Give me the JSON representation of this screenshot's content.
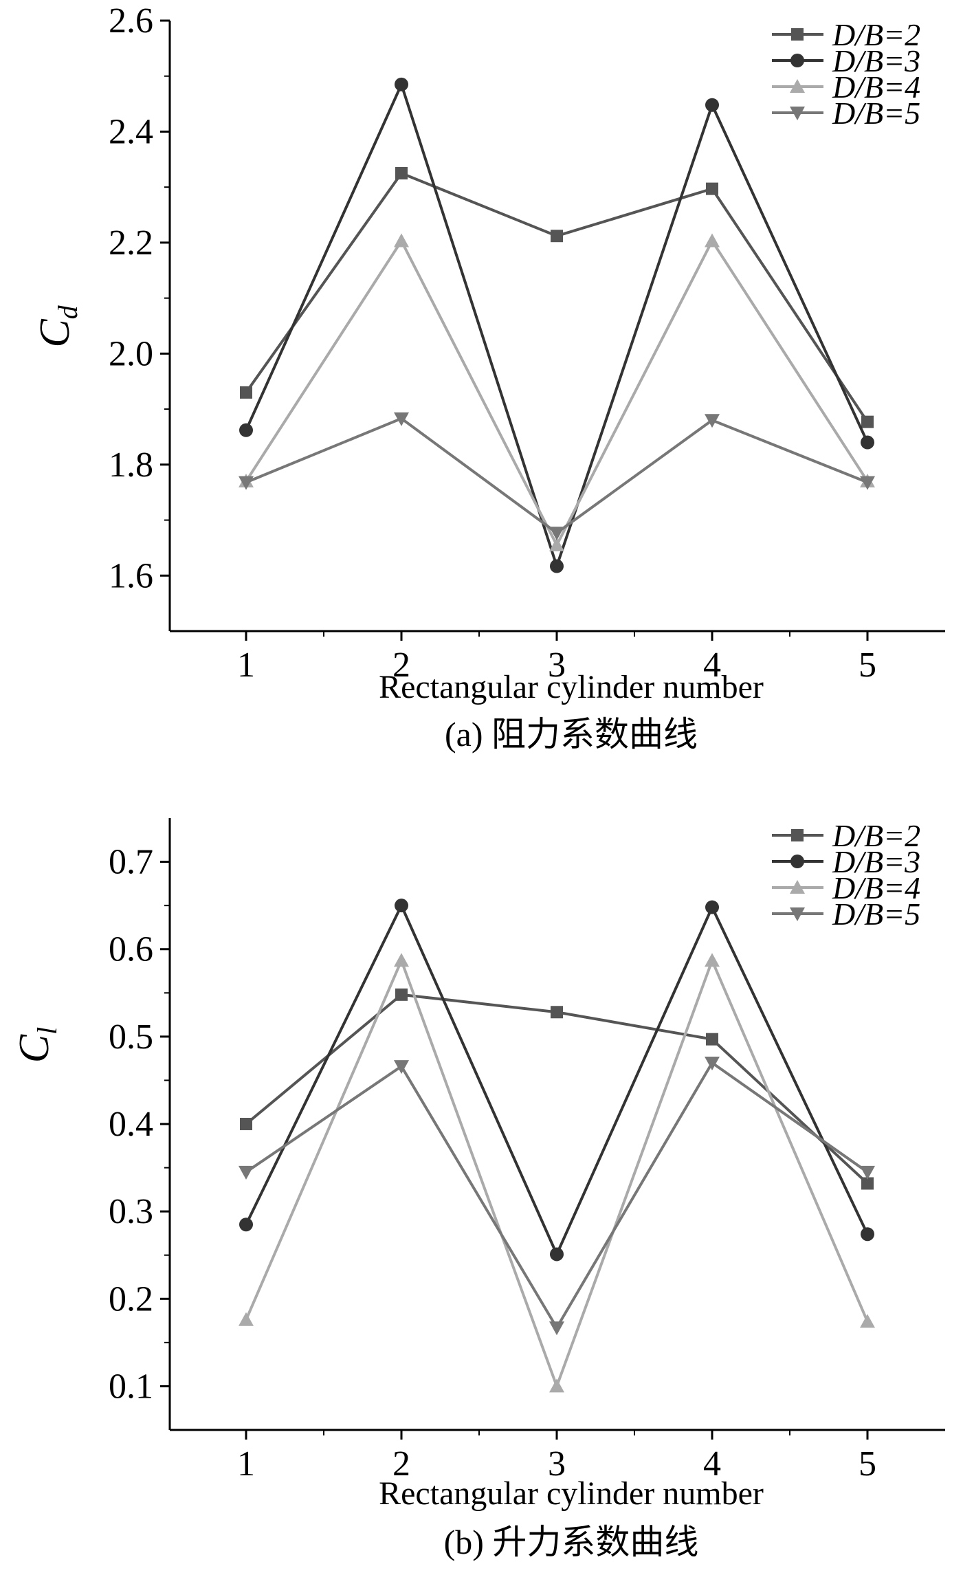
{
  "chart_data": [
    {
      "type": "line",
      "categories": [
        "1",
        "2",
        "3",
        "4",
        "5"
      ],
      "x": [
        1,
        2,
        3,
        4,
        5
      ],
      "xlabel": "Rectangular cylinder number",
      "ylabel": "C",
      "ylabel_sub": "d",
      "caption": "(a) 阻力系数曲线",
      "ylim": [
        1.5,
        2.6
      ],
      "yticks": [
        "1.6",
        "1.8",
        "2.0",
        "2.2",
        "2.4",
        "2.6"
      ],
      "ytick_values": [
        1.6,
        1.8,
        2.0,
        2.2,
        2.4,
        2.6
      ],
      "legend_position": "top-right",
      "series": [
        {
          "name": "D/B=2",
          "marker": "square",
          "color": "#555555",
          "values": [
            1.93,
            2.325,
            2.212,
            2.297,
            1.877
          ]
        },
        {
          "name": "D/B=3",
          "marker": "circle",
          "color": "#333333",
          "values": [
            1.862,
            2.485,
            1.617,
            2.448,
            1.84
          ]
        },
        {
          "name": "D/B=4",
          "marker": "triangle-up",
          "color": "#aaaaaa",
          "values": [
            1.77,
            2.203,
            1.655,
            2.203,
            1.77
          ]
        },
        {
          "name": "D/B=5",
          "marker": "triangle-down",
          "color": "#777777",
          "values": [
            1.768,
            1.883,
            1.677,
            1.88,
            1.768
          ]
        }
      ]
    },
    {
      "type": "line",
      "categories": [
        "1",
        "2",
        "3",
        "4",
        "5"
      ],
      "x": [
        1,
        2,
        3,
        4,
        5
      ],
      "xlabel": "Rectangular cylinder number",
      "ylabel": "C",
      "ylabel_sub": "l",
      "caption": "(b) 升力系数曲线",
      "ylim": [
        0.05,
        0.75
      ],
      "yticks": [
        "0.1",
        "0.2",
        "0.3",
        "0.4",
        "0.5",
        "0.6",
        "0.7"
      ],
      "ytick_values": [
        0.1,
        0.2,
        0.3,
        0.4,
        0.5,
        0.6,
        0.7
      ],
      "legend_position": "top-right",
      "series": [
        {
          "name": "D/B=2",
          "marker": "square",
          "color": "#555555",
          "values": [
            0.4,
            0.548,
            0.528,
            0.497,
            0.332
          ]
        },
        {
          "name": "D/B=3",
          "marker": "circle",
          "color": "#333333",
          "values": [
            0.285,
            0.65,
            0.251,
            0.648,
            0.274
          ]
        },
        {
          "name": "D/B=4",
          "marker": "triangle-up",
          "color": "#aaaaaa",
          "values": [
            0.176,
            0.587,
            0.1,
            0.587,
            0.174
          ]
        },
        {
          "name": "D/B=5",
          "marker": "triangle-down",
          "color": "#777777",
          "values": [
            0.345,
            0.466,
            0.167,
            0.47,
            0.345
          ]
        }
      ]
    }
  ]
}
